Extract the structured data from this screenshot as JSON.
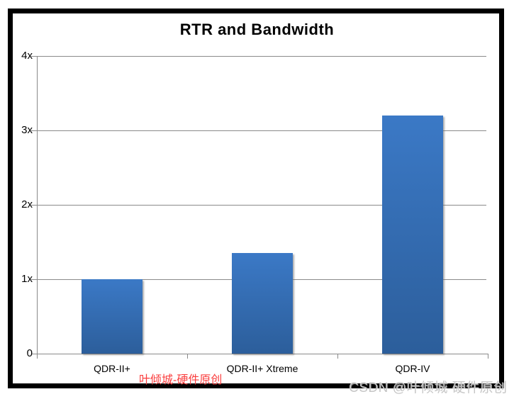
{
  "title_bar": {
    "title": "RTR and Bandwidth"
  },
  "chart_data": {
    "type": "bar",
    "title": "RTR and Bandwidth",
    "categories": [
      "QDR-II+",
      "QDR-II+ Xtreme",
      "QDR-IV"
    ],
    "values": [
      1.0,
      1.35,
      3.2
    ],
    "xlabel": "",
    "ylabel": "",
    "y_ticks": [
      0,
      1,
      2,
      3,
      4
    ],
    "y_tick_labels": [
      "0",
      "1x",
      "2x",
      "3x",
      "4x"
    ],
    "ylim": [
      0,
      4
    ],
    "grid": "horizontal",
    "legend": "none"
  },
  "watermarks": {
    "red_text": "叶倾城-硬件原创",
    "gray_text": "CSDN @叶倾城 硬件原创"
  },
  "colors": {
    "frame_border": "#000000",
    "gridline": "#8a8a8a",
    "axis": "#8a8a8a",
    "title_text": "#000000",
    "tick_text": "#000000",
    "bar_gradient_top": "#3b79c6",
    "bar_gradient_bottom": "#2c5e9b",
    "watermark_red": "#fa3e3e",
    "watermark_gray": "#c6c6c6"
  }
}
